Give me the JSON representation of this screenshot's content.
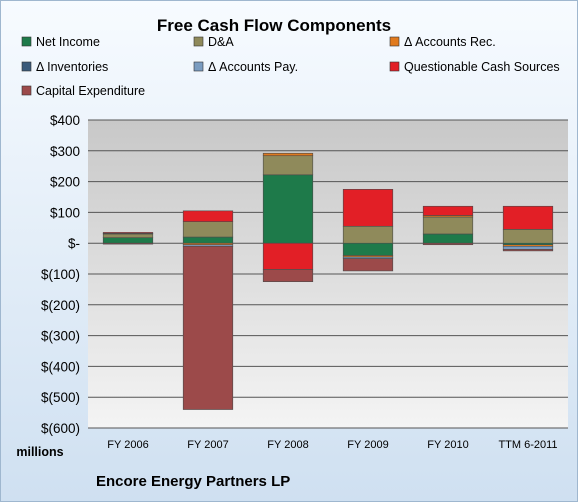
{
  "chart_data": {
    "type": "bar",
    "stacked": true,
    "title": "Free Cash Flow Components",
    "company": "Encore Energy Partners LP",
    "unit_label": "millions",
    "categories": [
      "FY 2006",
      "FY 2007",
      "FY 2008",
      "FY 2009",
      "FY 2010",
      "TTM 6-2011"
    ],
    "ylim": [
      -600,
      400
    ],
    "yticks": [
      400,
      300,
      200,
      100,
      0,
      -100,
      -200,
      -300,
      -400,
      -500,
      -600
    ],
    "ytick_labels": [
      "$400",
      "$300",
      "$200",
      "$100",
      "$-",
      "$(100)",
      "$(200)",
      "$(300)",
      "$(400)",
      "$(500)",
      "$(600)"
    ],
    "grid": true,
    "legend_position": "top",
    "series": [
      {
        "name": "Net Income",
        "color": "#1e7a4a",
        "values": [
          18,
          20,
          222,
          -40,
          30,
          -5
        ]
      },
      {
        "name": "D&A",
        "color": "#8f8a5b",
        "values": [
          12,
          50,
          62,
          55,
          55,
          45
        ]
      },
      {
        "name": "Δ Accounts Rec.",
        "color": "#e07a1e",
        "values": [
          2,
          -5,
          8,
          -5,
          5,
          -5
        ]
      },
      {
        "name": "Δ Inventories",
        "color": "#3a5a7a",
        "values": [
          0,
          0,
          0,
          0,
          0,
          0
        ]
      },
      {
        "name": "Δ Accounts Pay.",
        "color": "#7a9cc0",
        "values": [
          0,
          -5,
          0,
          -5,
          0,
          -10
        ]
      },
      {
        "name": "Questionable Cash Sources",
        "color": "#e21f26",
        "values": [
          3,
          35,
          -85,
          120,
          30,
          75
        ]
      },
      {
        "name": "Capital Expenditure",
        "color": "#9c4a4a",
        "values": [
          -3,
          -530,
          -40,
          -40,
          -5,
          -5
        ]
      }
    ]
  }
}
